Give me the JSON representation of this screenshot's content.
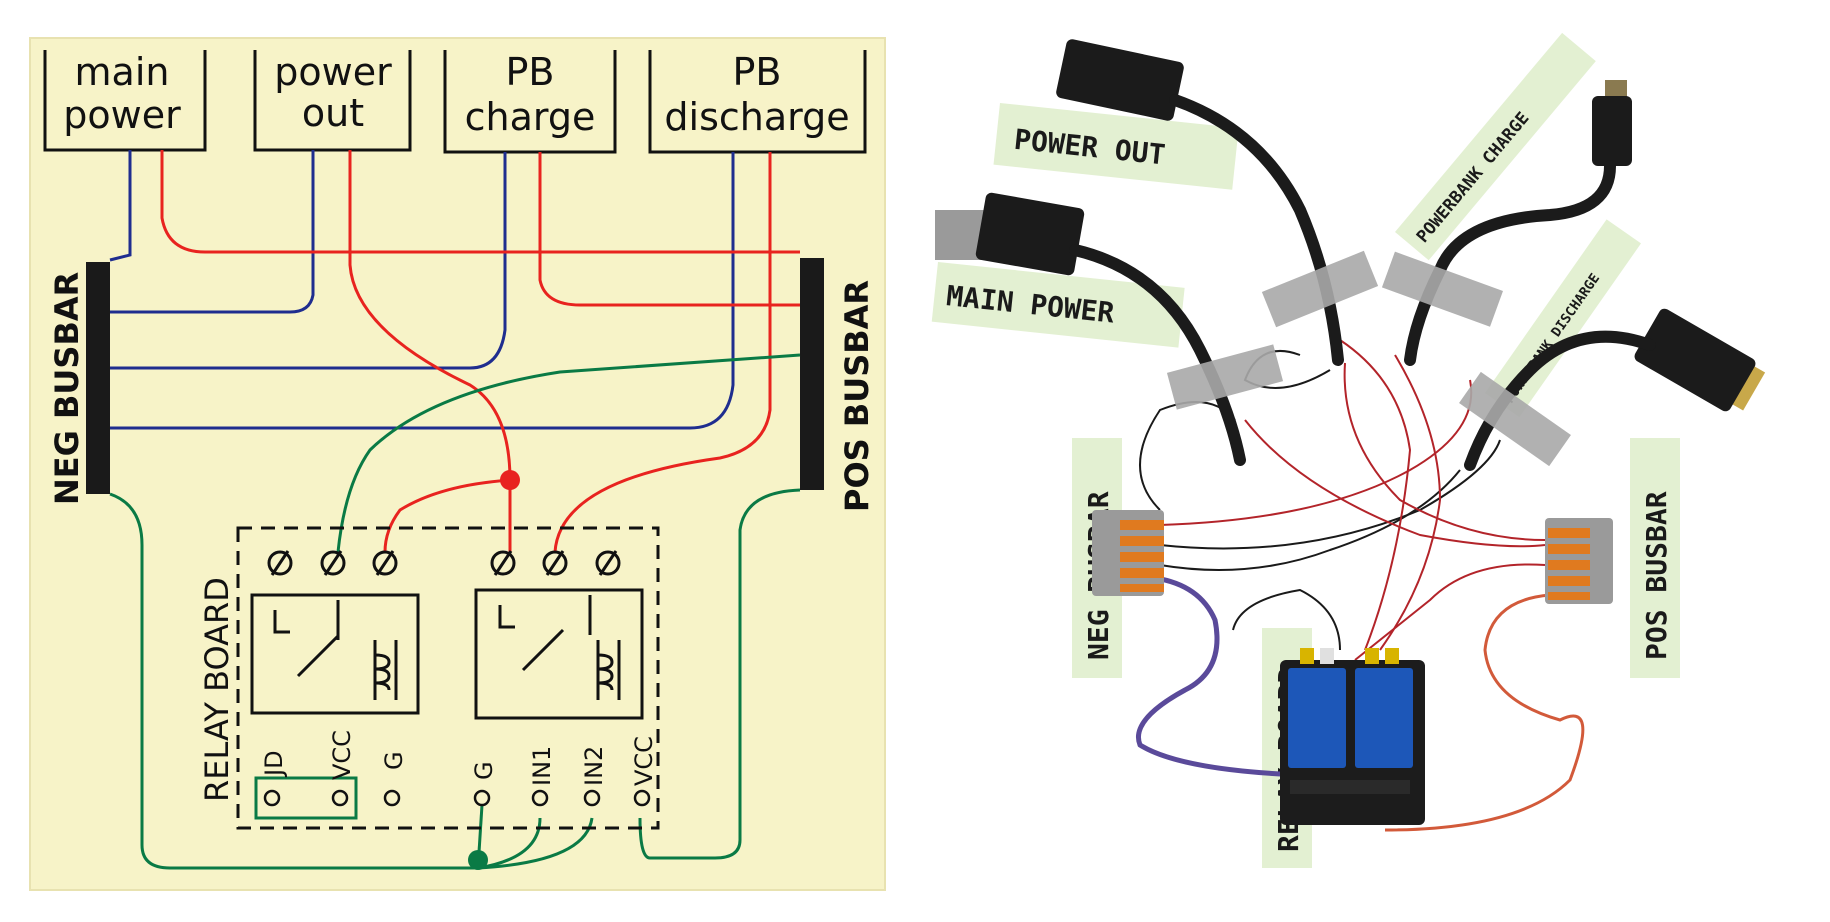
{
  "sketch": {
    "boxes": [
      {
        "line1": "main",
        "line2": "power"
      },
      {
        "line1": "power",
        "line2": "out"
      },
      {
        "line1": "PB",
        "line2": "charge"
      },
      {
        "line1": "PB",
        "line2": "discharge"
      }
    ],
    "neg_busbar": "NEG BUSBAR",
    "pos_busbar": "POS BUSBAR",
    "relay_board": "RELAY BOARD",
    "pins": [
      "JD",
      "VCC",
      "G",
      "G",
      "IN1",
      "IN2",
      "VCC"
    ],
    "colors": {
      "paper": "#f7f3c8",
      "red": "#e8231f",
      "blue": "#1f2d8f",
      "green": "#0a7a45",
      "ink": "#111111"
    }
  },
  "photo": {
    "labels": {
      "power_out": "POWER OUT",
      "main_power": "MAIN POWER",
      "powerbank_charge": "POWERBANK CHARGE",
      "powerbank_discharge": "POWERBANK DISCHARGE",
      "neg_busbar": "NEG BUSBAR",
      "relay_board": "RELAY BOARD",
      "pos_busbar": "POS BUSBAR"
    },
    "colors": {
      "tape": "#e3f0d2",
      "cable": "#1b1b1b",
      "wago": "#9a9a9a",
      "lever": "#e07a1f",
      "pcb": "#1c1c1c",
      "relay": "#1d57b8"
    }
  }
}
